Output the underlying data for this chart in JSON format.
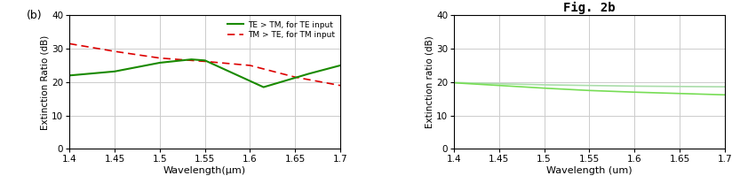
{
  "left": {
    "label_b": "(b)",
    "xlabel": "Wavelength(μm)",
    "ylabel": "Extinction Ratio (dB)",
    "xlim": [
      1.4,
      1.7
    ],
    "ylim": [
      0,
      40
    ],
    "xticks": [
      1.4,
      1.45,
      1.5,
      1.55,
      1.6,
      1.65,
      1.7
    ],
    "yticks": [
      0,
      10,
      20,
      30,
      40
    ],
    "green_x": [
      1.4,
      1.45,
      1.5,
      1.535,
      1.55,
      1.615,
      1.665,
      1.7
    ],
    "green_y": [
      22.0,
      23.2,
      25.8,
      26.8,
      26.5,
      18.5,
      22.5,
      25.0
    ],
    "red_x": [
      1.4,
      1.45,
      1.5,
      1.535,
      1.55,
      1.6,
      1.65,
      1.7
    ],
    "red_y": [
      31.5,
      29.2,
      27.2,
      26.5,
      26.2,
      25.0,
      21.5,
      19.0
    ],
    "legend_green": "TE > TM, for TE input",
    "legend_red": "TM > TE, for TM input",
    "green_color": "#1a8a00",
    "red_color": "#dd0000",
    "grid_color": "#cccccc"
  },
  "right": {
    "title": "Fig. 2b",
    "xlabel": "Wavelength (um)",
    "ylabel": "Extinction ratio (dB)",
    "xlim": [
      1.4,
      1.7
    ],
    "ylim": [
      0,
      40
    ],
    "xticks": [
      1.4,
      1.45,
      1.5,
      1.55,
      1.6,
      1.65,
      1.7
    ],
    "yticks": [
      0,
      10,
      20,
      30,
      40
    ],
    "green_x": [
      1.4,
      1.45,
      1.5,
      1.55,
      1.6,
      1.65,
      1.7
    ],
    "green_y": [
      19.8,
      19.0,
      18.2,
      17.5,
      17.0,
      16.6,
      16.2
    ],
    "green2_x": [
      1.4,
      1.45,
      1.5,
      1.55,
      1.6,
      1.65,
      1.7
    ],
    "green2_y": [
      19.9,
      19.5,
      19.2,
      19.0,
      18.8,
      18.7,
      18.6
    ],
    "green_color": "#77dd55",
    "green2_color": "#aaddaa",
    "grid_color": "#cccccc"
  },
  "bg_color": "#ffffff",
  "fig_width": 8.24,
  "fig_height": 2.16,
  "dpi": 100
}
